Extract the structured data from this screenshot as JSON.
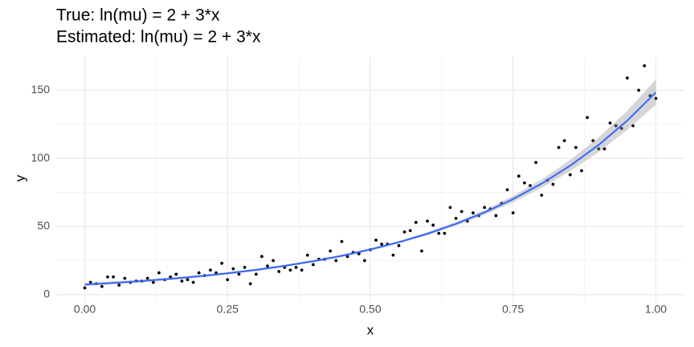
{
  "chart_data": {
    "type": "scatter",
    "title": "True: ln(mu) = 2 + 3*x",
    "subtitle": "Estimated: ln(mu) = 2 + 3*x",
    "x_label": "x",
    "y_label": "y",
    "xlim": [
      -0.05,
      1.05
    ],
    "ylim": [
      -6,
      175
    ],
    "xticks": [
      {
        "value": 0,
        "label": "0.00"
      },
      {
        "value": 0.25,
        "label": "0.25"
      },
      {
        "value": 0.5,
        "label": "0.50"
      },
      {
        "value": 0.75,
        "label": "0.75"
      },
      {
        "value": 1,
        "label": "1.00"
      }
    ],
    "yticks": [
      0,
      50,
      100,
      150
    ],
    "xminor": [
      0.125,
      0.375,
      0.625,
      0.875
    ],
    "yminor": [
      25,
      75,
      125
    ],
    "grid": true,
    "point_color": "#000000",
    "x": [
      0,
      0.01,
      0.02,
      0.03,
      0.04,
      0.05,
      0.06,
      0.07,
      0.08,
      0.09,
      0.1,
      0.11,
      0.12,
      0.13,
      0.14,
      0.15,
      0.16,
      0.17,
      0.18,
      0.19,
      0.2,
      0.21,
      0.22,
      0.23,
      0.24,
      0.25,
      0.26,
      0.27,
      0.28,
      0.29,
      0.3,
      0.31,
      0.32,
      0.33,
      0.34,
      0.35,
      0.36,
      0.37,
      0.38,
      0.39,
      0.4,
      0.41,
      0.42,
      0.43,
      0.44,
      0.45,
      0.46,
      0.47,
      0.48,
      0.49,
      0.5,
      0.51,
      0.52,
      0.53,
      0.54,
      0.55,
      0.56,
      0.57,
      0.58,
      0.59,
      0.6,
      0.61,
      0.62,
      0.63,
      0.64,
      0.65,
      0.66,
      0.67,
      0.68,
      0.69,
      0.7,
      0.71,
      0.72,
      0.73,
      0.74,
      0.75,
      0.76,
      0.77,
      0.78,
      0.79,
      0.8,
      0.81,
      0.82,
      0.83,
      0.84,
      0.85,
      0.86,
      0.87,
      0.88,
      0.89,
      0.9,
      0.91,
      0.92,
      0.93,
      0.94,
      0.95,
      0.96,
      0.97,
      0.98,
      0.99,
      1
    ],
    "values": [
      5,
      9,
      8,
      6,
      13,
      13,
      7,
      12,
      9,
      10,
      10,
      12,
      9,
      16,
      11,
      13,
      15,
      10,
      11,
      9,
      16,
      14,
      18,
      16,
      23,
      11,
      19,
      15,
      20,
      8,
      15,
      28,
      21,
      25,
      17,
      20,
      18,
      20,
      18,
      29,
      22,
      26,
      26,
      32,
      25,
      39,
      28,
      31,
      30,
      25,
      33,
      40,
      37,
      37,
      29,
      36,
      46,
      47,
      53,
      32,
      54,
      51,
      45,
      45,
      64,
      56,
      61,
      54,
      60,
      58,
      64,
      63,
      58,
      67,
      77,
      60,
      87,
      82,
      80,
      97,
      73,
      84,
      81,
      108,
      113,
      88,
      108,
      91,
      130,
      113,
      107,
      107,
      126,
      124,
      122,
      159,
      124,
      150,
      168,
      146,
      144
    ],
    "fit": {
      "color": "#3366ff",
      "band_color": "#999999",
      "x": [
        0,
        0.05,
        0.1,
        0.15,
        0.2,
        0.25,
        0.3,
        0.35,
        0.4,
        0.45,
        0.5,
        0.55,
        0.6,
        0.65,
        0.7,
        0.75,
        0.8,
        0.85,
        0.9,
        0.95,
        1
      ],
      "values": [
        7.39,
        8.58,
        9.97,
        11.59,
        13.46,
        15.64,
        18.17,
        21.11,
        24.53,
        28.5,
        33.12,
        38.47,
        44.7,
        51.94,
        60.34,
        70.11,
        81.45,
        94.63,
        109.95,
        127.74,
        148.41
      ],
      "lower": [
        6.4,
        7.6,
        9.0,
        10.7,
        12.6,
        14.8,
        17.3,
        20.3,
        23.7,
        27.7,
        32.3,
        37.6,
        43.6,
        50.6,
        58.6,
        67.8,
        78.4,
        90.6,
        104.7,
        120.9,
        139.5
      ],
      "upper": [
        8.5,
        9.7,
        11.0,
        12.6,
        14.4,
        16.5,
        19.1,
        22.0,
        25.4,
        29.4,
        34.0,
        39.4,
        45.8,
        53.3,
        62.1,
        72.5,
        84.6,
        98.8,
        115.5,
        135.0,
        157.9
      ]
    }
  }
}
